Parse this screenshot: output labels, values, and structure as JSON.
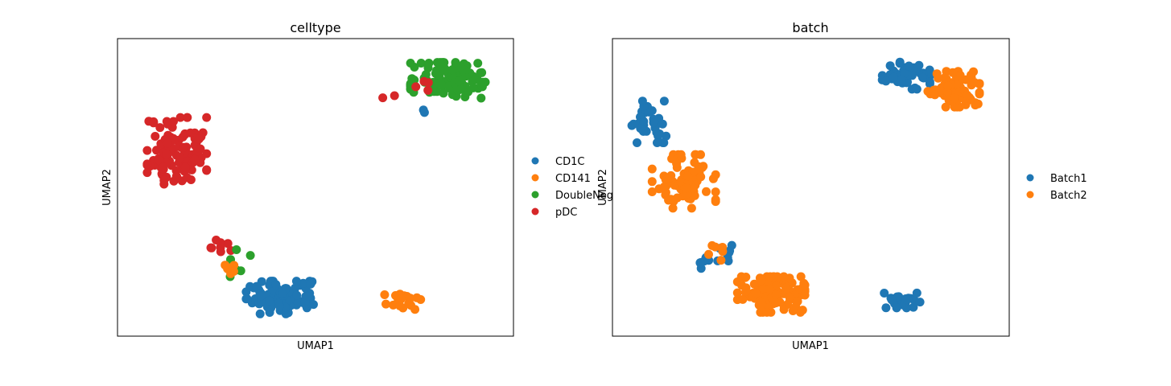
{
  "colors": {
    "blue": "#1f77b4",
    "orange": "#ff7f0e",
    "green": "#2ca02c",
    "red": "#d62728"
  },
  "chart_data": [
    {
      "type": "scatter",
      "title": "celltype",
      "xlabel": "UMAP1",
      "ylabel": "UMAP2",
      "xlim": [
        0,
        10
      ],
      "ylim": [
        0,
        10
      ],
      "grid": false,
      "ticks": false,
      "legend_position": "right",
      "clusters": [
        {
          "label": "pDC",
          "color": "red",
          "cx": 1.5,
          "cy": 6.2,
          "sx": 0.75,
          "sy": 1.15,
          "n": 110,
          "seed": 11
        },
        {
          "label": "DoubleNeg",
          "color": "green",
          "cx": 8.4,
          "cy": 8.6,
          "sx": 1.0,
          "sy": 0.6,
          "n": 115,
          "seed": 21
        },
        {
          "label": "CD1C",
          "color": "blue",
          "cx": 4.1,
          "cy": 1.3,
          "sx": 0.85,
          "sy": 0.55,
          "n": 120,
          "seed": 31
        },
        {
          "label": "CD141",
          "color": "orange",
          "cx": 7.2,
          "cy": 1.2,
          "sx": 0.5,
          "sy": 0.3,
          "n": 22,
          "seed": 41
        },
        {
          "label": "pDC",
          "color": "red",
          "cx": 2.6,
          "cy": 3.0,
          "sx": 0.35,
          "sy": 0.3,
          "n": 8,
          "seed": 51
        },
        {
          "label": "DoubleNeg",
          "color": "green",
          "cx": 2.8,
          "cy": 2.6,
          "sx": 0.6,
          "sy": 0.6,
          "n": 8,
          "seed": 61
        },
        {
          "label": "CD141",
          "color": "orange",
          "cx": 3.0,
          "cy": 2.4,
          "sx": 0.5,
          "sy": 0.3,
          "n": 6,
          "seed": 71
        },
        {
          "label": "pDC",
          "color": "red",
          "cx": 7.5,
          "cy": 8.3,
          "sx": 0.8,
          "sy": 0.5,
          "n": 6,
          "seed": 81
        },
        {
          "label": "CD1C",
          "color": "blue",
          "cx": 7.9,
          "cy": 7.4,
          "sx": 0.2,
          "sy": 0.2,
          "n": 2,
          "seed": 91
        }
      ],
      "legend": [
        {
          "label": "CD1C",
          "color": "blue"
        },
        {
          "label": "CD141",
          "color": "orange"
        },
        {
          "label": "DoubleNeg",
          "color": "green"
        },
        {
          "label": "pDC",
          "color": "red"
        }
      ]
    },
    {
      "type": "scatter",
      "title": "batch",
      "xlabel": "UMAP1",
      "ylabel": "UMAP2",
      "xlim": [
        0,
        10
      ],
      "ylim": [
        0,
        10
      ],
      "grid": false,
      "ticks": false,
      "legend_position": "right",
      "clusters": [
        {
          "label": "Batch1",
          "color": "blue",
          "cx": 0.9,
          "cy": 7.2,
          "sx": 0.45,
          "sy": 0.7,
          "n": 35,
          "seed": 101
        },
        {
          "label": "Batch2",
          "color": "orange",
          "cx": 1.8,
          "cy": 5.2,
          "sx": 0.8,
          "sy": 0.9,
          "n": 80,
          "seed": 111
        },
        {
          "label": "Batch1",
          "color": "blue",
          "cx": 7.4,
          "cy": 8.8,
          "sx": 0.6,
          "sy": 0.5,
          "n": 45,
          "seed": 121
        },
        {
          "label": "Batch2",
          "color": "orange",
          "cx": 8.6,
          "cy": 8.3,
          "sx": 0.65,
          "sy": 0.6,
          "n": 75,
          "seed": 131
        },
        {
          "label": "Batch1",
          "color": "blue",
          "cx": 2.6,
          "cy": 2.6,
          "sx": 0.45,
          "sy": 0.45,
          "n": 14,
          "seed": 141
        },
        {
          "label": "Batch2",
          "color": "orange",
          "cx": 4.0,
          "cy": 1.4,
          "sx": 0.85,
          "sy": 0.6,
          "n": 115,
          "seed": 151
        },
        {
          "label": "Batch1",
          "color": "blue",
          "cx": 7.3,
          "cy": 1.2,
          "sx": 0.45,
          "sy": 0.25,
          "n": 26,
          "seed": 161
        },
        {
          "label": "Batch2",
          "color": "orange",
          "cx": 2.7,
          "cy": 2.9,
          "sx": 0.35,
          "sy": 0.35,
          "n": 6,
          "seed": 171
        }
      ],
      "legend": [
        {
          "label": "Batch1",
          "color": "blue"
        },
        {
          "label": "Batch2",
          "color": "orange"
        }
      ]
    }
  ]
}
